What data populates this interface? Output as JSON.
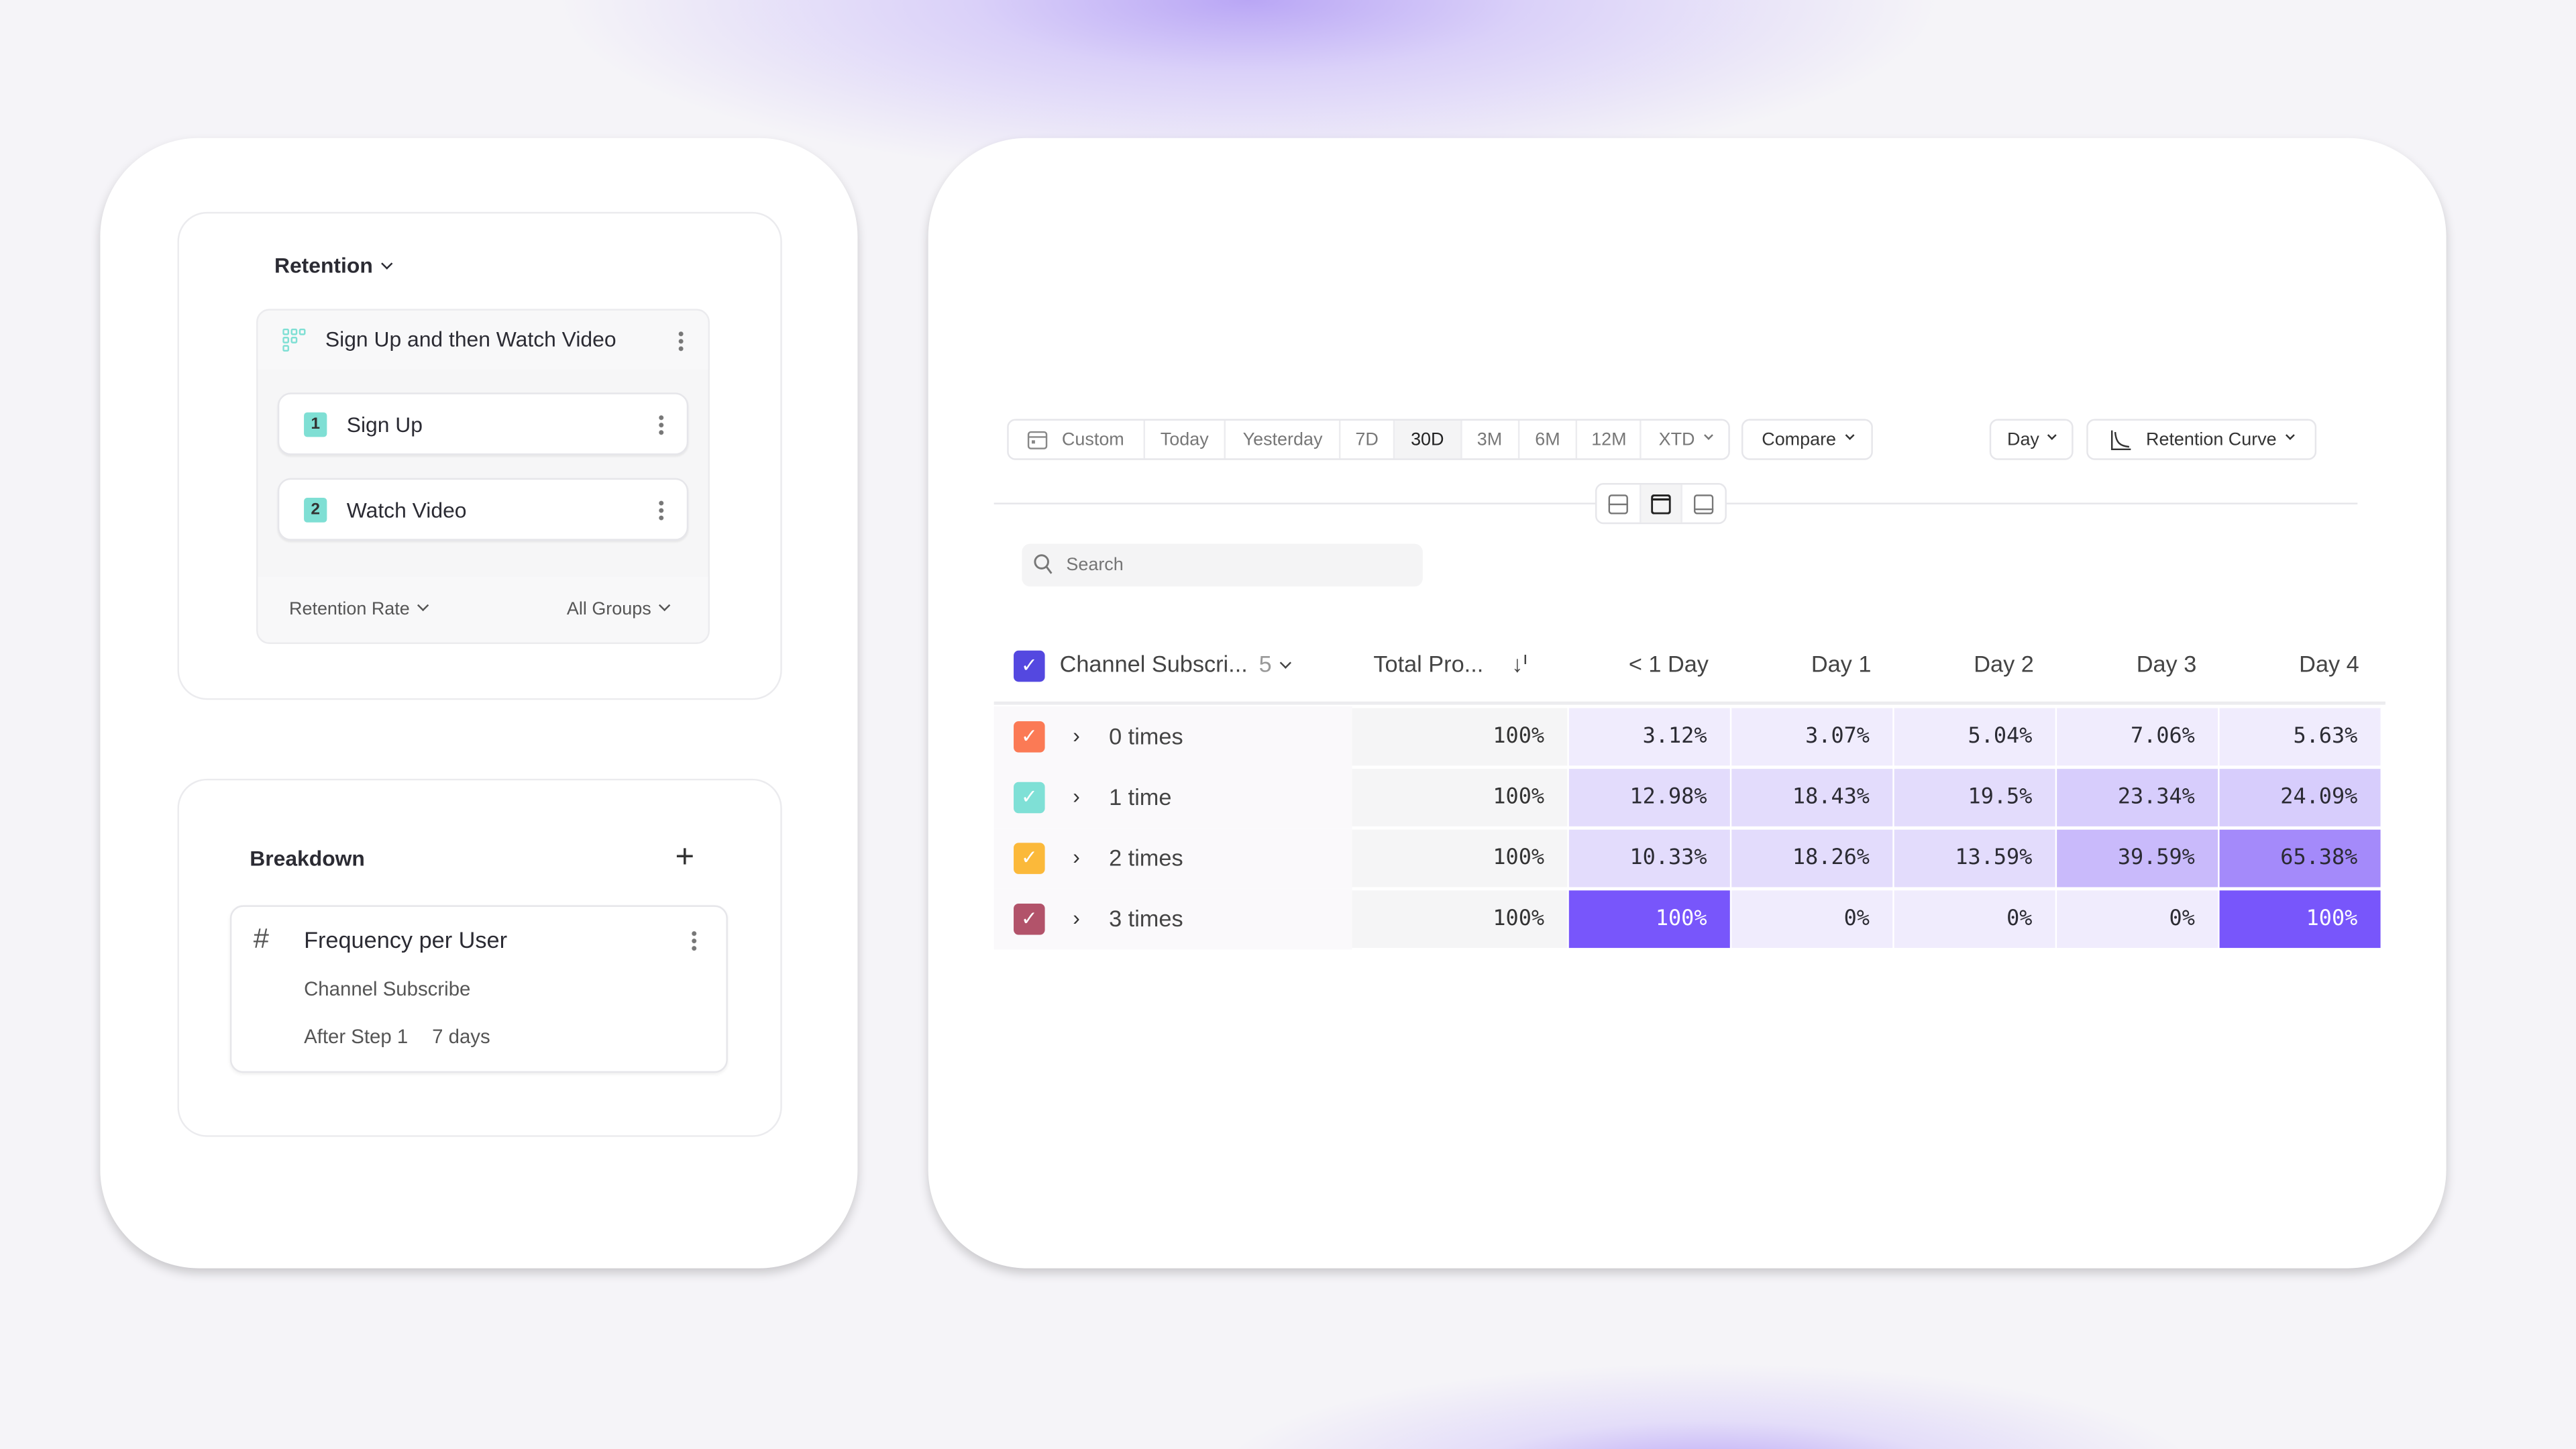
{
  "left": {
    "analysis_type": "Retention",
    "metric": {
      "title": "Sign Up and then Watch Video",
      "steps": [
        {
          "number": "1",
          "label": "Sign Up"
        },
        {
          "number": "2",
          "label": "Watch Video"
        }
      ],
      "measure": "Retention Rate",
      "groups": "All Groups"
    },
    "breakdown": {
      "title": "Breakdown",
      "item": {
        "title": "Frequency per User",
        "event": "Channel Subscribe",
        "scope": "After Step 1",
        "window": "7 days"
      }
    }
  },
  "toolbar": {
    "ranges": [
      "Custom",
      "Today",
      "Yesterday",
      "7D",
      "30D",
      "3M",
      "6M",
      "12M",
      "XTD"
    ],
    "selected_range": "30D",
    "compare": "Compare",
    "interval": "Day",
    "chart_type": "Retention Curve"
  },
  "search": {
    "placeholder": "Search"
  },
  "table": {
    "group_header": "Channel Subscri...",
    "group_count": "5",
    "total_header": "Total Pro...",
    "columns": [
      "< 1 Day",
      "Day 1",
      "Day 2",
      "Day 3",
      "Day 4"
    ],
    "rows": [
      {
        "label": "0 times",
        "color": "#fb7a55",
        "total": "100%",
        "values": [
          "3.12%",
          "3.07%",
          "5.04%",
          "7.06%",
          "5.63%"
        ]
      },
      {
        "label": "1 time",
        "color": "#7fe0d6",
        "total": "100%",
        "values": [
          "12.98%",
          "18.43%",
          "19.5%",
          "23.34%",
          "24.09%"
        ]
      },
      {
        "label": "2 times",
        "color": "#fbb93a",
        "total": "100%",
        "values": [
          "10.33%",
          "18.26%",
          "13.59%",
          "39.59%",
          "65.38%"
        ]
      },
      {
        "label": "3 times",
        "color": "#b2536a",
        "total": "100%",
        "values": [
          "100%",
          "0%",
          "0%",
          "0%",
          "100%"
        ]
      }
    ],
    "header_checkbox_color": "#5448e0"
  }
}
